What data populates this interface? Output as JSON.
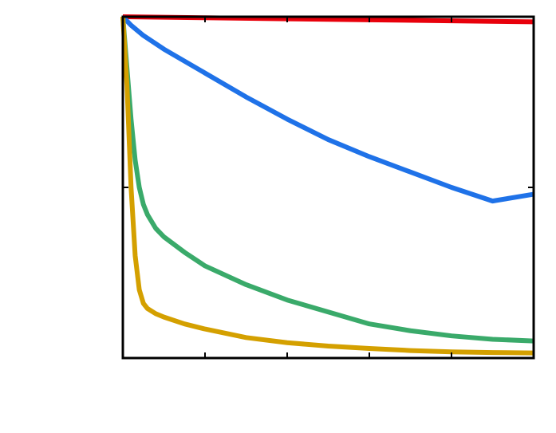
{
  "chart_data": {
    "type": "line",
    "title": "",
    "xlabel": "",
    "ylabel": "",
    "xlim": [
      0,
      1
    ],
    "ylim": [
      0,
      1
    ],
    "x_ticks": [
      0,
      0.2,
      0.4,
      0.6,
      0.8,
      1.0
    ],
    "y_ticks": [
      0,
      0.5,
      1.0
    ],
    "tick_labels_visible": false,
    "grid": false,
    "legend": "none",
    "series": [
      {
        "name": "red",
        "color": "#e8000b",
        "x": [
          0,
          0.2,
          0.4,
          0.6,
          0.8,
          1.0
        ],
        "y": [
          1.0,
          0.997,
          0.994,
          0.991,
          0.988,
          0.985
        ]
      },
      {
        "name": "blue",
        "color": "#1f72e8",
        "x": [
          0,
          0.02,
          0.05,
          0.1,
          0.2,
          0.3,
          0.4,
          0.5,
          0.6,
          0.7,
          0.8,
          0.9,
          1.0
        ],
        "y": [
          1.0,
          0.975,
          0.945,
          0.905,
          0.835,
          0.765,
          0.7,
          0.64,
          0.59,
          0.545,
          0.5,
          0.46,
          0.48
        ]
      },
      {
        "name": "green",
        "color": "#3aaa6a",
        "x": [
          0,
          0.01,
          0.02,
          0.03,
          0.04,
          0.05,
          0.06,
          0.08,
          0.1,
          0.15,
          0.2,
          0.3,
          0.4,
          0.5,
          0.6,
          0.7,
          0.8,
          0.9,
          1.0
        ],
        "y": [
          1.0,
          0.85,
          0.7,
          0.58,
          0.5,
          0.45,
          0.42,
          0.38,
          0.355,
          0.31,
          0.27,
          0.215,
          0.17,
          0.135,
          0.1,
          0.08,
          0.065,
          0.055,
          0.05
        ]
      },
      {
        "name": "gold",
        "color": "#d4a000",
        "x": [
          0,
          0.01,
          0.02,
          0.03,
          0.04,
          0.05,
          0.06,
          0.08,
          0.1,
          0.15,
          0.2,
          0.3,
          0.4,
          0.5,
          0.6,
          0.7,
          0.8,
          0.9,
          1.0
        ],
        "y": [
          1.0,
          0.8,
          0.5,
          0.3,
          0.2,
          0.16,
          0.145,
          0.13,
          0.12,
          0.1,
          0.085,
          0.06,
          0.045,
          0.035,
          0.028,
          0.022,
          0.018,
          0.016,
          0.015
        ]
      }
    ]
  }
}
